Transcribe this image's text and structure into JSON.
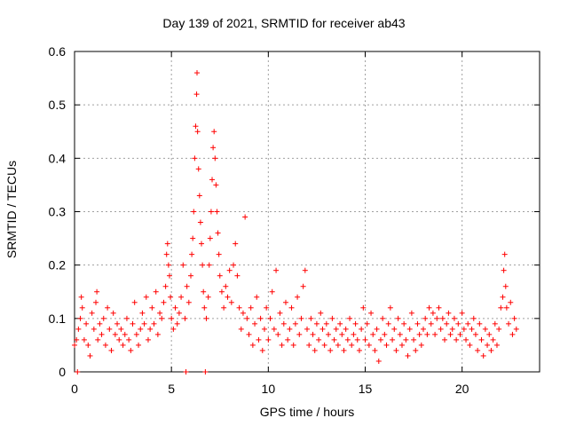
{
  "chart_data": {
    "type": "scatter",
    "title": "Day 139 of 2021, SRMTID for receiver ab43",
    "xlabel": "GPS time / hours",
    "ylabel": "SRMTID / TECUs",
    "xlim": [
      0,
      24
    ],
    "ylim": [
      0,
      0.6
    ],
    "xticks": [
      0,
      5,
      10,
      15,
      20
    ],
    "yticks": [
      0,
      0.1,
      0.2,
      0.3,
      0.4,
      0.5,
      0.6
    ],
    "ytick_labels": [
      "0",
      "0.1",
      "0.2",
      "0.3",
      "0.4",
      "0.5",
      "0.6"
    ],
    "grid": true,
    "marker": "plus",
    "color": "#ff0000",
    "series": [
      {
        "name": "SRMTID",
        "points": [
          [
            0.0,
            0.05
          ],
          [
            0.1,
            0.06
          ],
          [
            0.15,
            0.0
          ],
          [
            0.2,
            0.08
          ],
          [
            0.3,
            0.1
          ],
          [
            0.35,
            0.14
          ],
          [
            0.4,
            0.12
          ],
          [
            0.5,
            0.06
          ],
          [
            0.6,
            0.09
          ],
          [
            0.7,
            0.05
          ],
          [
            0.8,
            0.03
          ],
          [
            0.9,
            0.11
          ],
          [
            1.0,
            0.08
          ],
          [
            1.1,
            0.13
          ],
          [
            1.15,
            0.15
          ],
          [
            1.2,
            0.06
          ],
          [
            1.3,
            0.09
          ],
          [
            1.4,
            0.07
          ],
          [
            1.5,
            0.1
          ],
          [
            1.6,
            0.05
          ],
          [
            1.7,
            0.12
          ],
          [
            1.8,
            0.08
          ],
          [
            1.9,
            0.04
          ],
          [
            2.0,
            0.11
          ],
          [
            2.1,
            0.07
          ],
          [
            2.2,
            0.09
          ],
          [
            2.3,
            0.06
          ],
          [
            2.4,
            0.08
          ],
          [
            2.5,
            0.05
          ],
          [
            2.6,
            0.07
          ],
          [
            2.7,
            0.1
          ],
          [
            2.8,
            0.06
          ],
          [
            2.9,
            0.04
          ],
          [
            3.0,
            0.09
          ],
          [
            3.1,
            0.13
          ],
          [
            3.2,
            0.07
          ],
          [
            3.3,
            0.05
          ],
          [
            3.4,
            0.08
          ],
          [
            3.5,
            0.11
          ],
          [
            3.6,
            0.09
          ],
          [
            3.7,
            0.14
          ],
          [
            3.8,
            0.06
          ],
          [
            3.9,
            0.08
          ],
          [
            4.0,
            0.12
          ],
          [
            4.1,
            0.09
          ],
          [
            4.2,
            0.15
          ],
          [
            4.3,
            0.07
          ],
          [
            4.4,
            0.11
          ],
          [
            4.5,
            0.1
          ],
          [
            4.6,
            0.13
          ],
          [
            4.7,
            0.16
          ],
          [
            4.75,
            0.22
          ],
          [
            4.8,
            0.24
          ],
          [
            4.85,
            0.2
          ],
          [
            4.9,
            0.18
          ],
          [
            4.95,
            0.14
          ],
          [
            5.0,
            0.1
          ],
          [
            5.1,
            0.08
          ],
          [
            5.2,
            0.12
          ],
          [
            5.3,
            0.09
          ],
          [
            5.4,
            0.11
          ],
          [
            5.5,
            0.14
          ],
          [
            5.6,
            0.2
          ],
          [
            5.7,
            0.1
          ],
          [
            5.75,
            0.0
          ],
          [
            5.8,
            0.16
          ],
          [
            5.9,
            0.13
          ],
          [
            6.0,
            0.18
          ],
          [
            6.05,
            0.22
          ],
          [
            6.1,
            0.25
          ],
          [
            6.15,
            0.3
          ],
          [
            6.2,
            0.4
          ],
          [
            6.25,
            0.46
          ],
          [
            6.3,
            0.52
          ],
          [
            6.32,
            0.56
          ],
          [
            6.35,
            0.45
          ],
          [
            6.4,
            0.38
          ],
          [
            6.45,
            0.33
          ],
          [
            6.5,
            0.28
          ],
          [
            6.55,
            0.24
          ],
          [
            6.6,
            0.2
          ],
          [
            6.65,
            0.15
          ],
          [
            6.7,
            0.12
          ],
          [
            6.75,
            0.0
          ],
          [
            6.8,
            0.1
          ],
          [
            6.9,
            0.14
          ],
          [
            6.95,
            0.2
          ],
          [
            7.0,
            0.25
          ],
          [
            7.05,
            0.3
          ],
          [
            7.1,
            0.36
          ],
          [
            7.15,
            0.42
          ],
          [
            7.2,
            0.45
          ],
          [
            7.25,
            0.4
          ],
          [
            7.3,
            0.35
          ],
          [
            7.35,
            0.3
          ],
          [
            7.4,
            0.26
          ],
          [
            7.45,
            0.22
          ],
          [
            7.5,
            0.18
          ],
          [
            7.6,
            0.15
          ],
          [
            7.7,
            0.12
          ],
          [
            7.8,
            0.16
          ],
          [
            7.9,
            0.14
          ],
          [
            8.0,
            0.19
          ],
          [
            8.1,
            0.13
          ],
          [
            8.2,
            0.2
          ],
          [
            8.3,
            0.24
          ],
          [
            8.4,
            0.18
          ],
          [
            8.5,
            0.12
          ],
          [
            8.6,
            0.08
          ],
          [
            8.7,
            0.11
          ],
          [
            8.8,
            0.29
          ],
          [
            8.9,
            0.1
          ],
          [
            9.0,
            0.07
          ],
          [
            9.1,
            0.12
          ],
          [
            9.2,
            0.05
          ],
          [
            9.3,
            0.09
          ],
          [
            9.4,
            0.14
          ],
          [
            9.5,
            0.06
          ],
          [
            9.6,
            0.1
          ],
          [
            9.7,
            0.04
          ],
          [
            9.8,
            0.08
          ],
          [
            9.9,
            0.12
          ],
          [
            10.0,
            0.06
          ],
          [
            10.1,
            0.1
          ],
          [
            10.2,
            0.15
          ],
          [
            10.3,
            0.08
          ],
          [
            10.4,
            0.19
          ],
          [
            10.5,
            0.07
          ],
          [
            10.6,
            0.11
          ],
          [
            10.7,
            0.05
          ],
          [
            10.8,
            0.09
          ],
          [
            10.9,
            0.13
          ],
          [
            11.0,
            0.06
          ],
          [
            11.1,
            0.08
          ],
          [
            11.2,
            0.12
          ],
          [
            11.3,
            0.05
          ],
          [
            11.4,
            0.09
          ],
          [
            11.5,
            0.14
          ],
          [
            11.6,
            0.07
          ],
          [
            11.7,
            0.1
          ],
          [
            11.8,
            0.16
          ],
          [
            11.9,
            0.19
          ],
          [
            12.0,
            0.08
          ],
          [
            12.1,
            0.05
          ],
          [
            12.2,
            0.1
          ],
          [
            12.3,
            0.07
          ],
          [
            12.4,
            0.04
          ],
          [
            12.5,
            0.09
          ],
          [
            12.6,
            0.06
          ],
          [
            12.7,
            0.11
          ],
          [
            12.8,
            0.08
          ],
          [
            12.9,
            0.05
          ],
          [
            13.0,
            0.09
          ],
          [
            13.1,
            0.07
          ],
          [
            13.2,
            0.04
          ],
          [
            13.3,
            0.1
          ],
          [
            13.4,
            0.06
          ],
          [
            13.5,
            0.08
          ],
          [
            13.6,
            0.05
          ],
          [
            13.7,
            0.09
          ],
          [
            13.8,
            0.07
          ],
          [
            13.9,
            0.04
          ],
          [
            14.0,
            0.08
          ],
          [
            14.1,
            0.06
          ],
          [
            14.2,
            0.1
          ],
          [
            14.3,
            0.05
          ],
          [
            14.4,
            0.07
          ],
          [
            14.5,
            0.09
          ],
          [
            14.6,
            0.06
          ],
          [
            14.7,
            0.04
          ],
          [
            14.8,
            0.08
          ],
          [
            14.9,
            0.12
          ],
          [
            15.0,
            0.06
          ],
          [
            15.1,
            0.09
          ],
          [
            15.2,
            0.05
          ],
          [
            15.3,
            0.11
          ],
          [
            15.4,
            0.07
          ],
          [
            15.5,
            0.04
          ],
          [
            15.6,
            0.08
          ],
          [
            15.7,
            0.02
          ],
          [
            15.8,
            0.06
          ],
          [
            15.9,
            0.1
          ],
          [
            16.0,
            0.07
          ],
          [
            16.1,
            0.05
          ],
          [
            16.2,
            0.09
          ],
          [
            16.3,
            0.12
          ],
          [
            16.4,
            0.06
          ],
          [
            16.5,
            0.08
          ],
          [
            16.6,
            0.04
          ],
          [
            16.7,
            0.1
          ],
          [
            16.8,
            0.07
          ],
          [
            16.9,
            0.05
          ],
          [
            17.0,
            0.09
          ],
          [
            17.1,
            0.06
          ],
          [
            17.2,
            0.03
          ],
          [
            17.3,
            0.08
          ],
          [
            17.4,
            0.11
          ],
          [
            17.5,
            0.06
          ],
          [
            17.6,
            0.04
          ],
          [
            17.7,
            0.09
          ],
          [
            17.8,
            0.07
          ],
          [
            17.9,
            0.05
          ],
          [
            18.0,
            0.08
          ],
          [
            18.1,
            0.1
          ],
          [
            18.2,
            0.07
          ],
          [
            18.3,
            0.12
          ],
          [
            18.4,
            0.09
          ],
          [
            18.5,
            0.11
          ],
          [
            18.6,
            0.07
          ],
          [
            18.7,
            0.1
          ],
          [
            18.8,
            0.12
          ],
          [
            18.9,
            0.08
          ],
          [
            19.0,
            0.1
          ],
          [
            19.1,
            0.06
          ],
          [
            19.2,
            0.09
          ],
          [
            19.3,
            0.11
          ],
          [
            19.4,
            0.07
          ],
          [
            19.5,
            0.08
          ],
          [
            19.6,
            0.1
          ],
          [
            19.7,
            0.06
          ],
          [
            19.8,
            0.09
          ],
          [
            19.9,
            0.07
          ],
          [
            20.0,
            0.11
          ],
          [
            20.1,
            0.08
          ],
          [
            20.2,
            0.06
          ],
          [
            20.3,
            0.09
          ],
          [
            20.4,
            0.05
          ],
          [
            20.5,
            0.08
          ],
          [
            20.6,
            0.1
          ],
          [
            20.7,
            0.07
          ],
          [
            20.8,
            0.04
          ],
          [
            20.9,
            0.09
          ],
          [
            21.0,
            0.06
          ],
          [
            21.1,
            0.03
          ],
          [
            21.2,
            0.08
          ],
          [
            21.3,
            0.05
          ],
          [
            21.4,
            0.07
          ],
          [
            21.5,
            0.04
          ],
          [
            21.6,
            0.06
          ],
          [
            21.7,
            0.09
          ],
          [
            21.8,
            0.05
          ],
          [
            21.9,
            0.08
          ],
          [
            22.0,
            0.12
          ],
          [
            22.1,
            0.14
          ],
          [
            22.15,
            0.19
          ],
          [
            22.2,
            0.22
          ],
          [
            22.25,
            0.16
          ],
          [
            22.3,
            0.12
          ],
          [
            22.4,
            0.09
          ],
          [
            22.5,
            0.13
          ],
          [
            22.6,
            0.07
          ],
          [
            22.7,
            0.1
          ],
          [
            22.8,
            0.08
          ]
        ]
      }
    ]
  }
}
